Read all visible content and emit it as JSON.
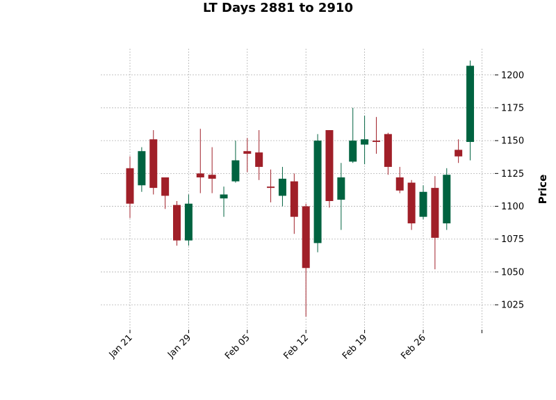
{
  "chart_data": {
    "type": "candlestick",
    "title": "LT Days 2881 to 2910",
    "ylabel": "Price",
    "xlabel": "",
    "ylim": [
      1006,
      1220
    ],
    "y_ticks": [
      1025,
      1050,
      1075,
      1100,
      1125,
      1150,
      1175,
      1200
    ],
    "x_tick_labels": [
      {
        "label": "Jan 21",
        "index": 0
      },
      {
        "label": "Jan 29",
        "index": 5
      },
      {
        "label": "Feb 05",
        "index": 10
      },
      {
        "label": "Feb 12",
        "index": 15
      },
      {
        "label": "Feb 19",
        "index": 20
      },
      {
        "label": "Feb 26",
        "index": 25
      },
      {
        "label": "",
        "index": 30
      }
    ],
    "grid": true,
    "colors": {
      "up": "#006340",
      "down": "#a01f28"
    },
    "candles": [
      {
        "open": 1129,
        "high": 1138,
        "low": 1091,
        "close": 1102
      },
      {
        "open": 1116,
        "high": 1145,
        "low": 1111,
        "close": 1142
      },
      {
        "open": 1151,
        "high": 1158,
        "low": 1109,
        "close": 1114
      },
      {
        "open": 1122,
        "high": 1122,
        "low": 1098,
        "close": 1108
      },
      {
        "open": 1101,
        "high": 1104,
        "low": 1070,
        "close": 1074
      },
      {
        "open": 1074,
        "high": 1109,
        "low": 1070,
        "close": 1102
      },
      {
        "open": 1125,
        "high": 1159,
        "low": 1110,
        "close": 1122
      },
      {
        "open": 1124,
        "high": 1145,
        "low": 1110,
        "close": 1121
      },
      {
        "open": 1106,
        "high": 1115,
        "low": 1092,
        "close": 1109
      },
      {
        "open": 1119,
        "high": 1150,
        "low": 1118,
        "close": 1135
      },
      {
        "open": 1142,
        "high": 1152,
        "low": 1126,
        "close": 1140
      },
      {
        "open": 1141,
        "high": 1158,
        "low": 1120,
        "close": 1130
      },
      {
        "open": 1115,
        "high": 1128,
        "low": 1103,
        "close": 1114
      },
      {
        "open": 1108,
        "high": 1130,
        "low": 1100,
        "close": 1121
      },
      {
        "open": 1119,
        "high": 1125,
        "low": 1079,
        "close": 1092
      },
      {
        "open": 1100,
        "high": 1102,
        "low": 1016,
        "close": 1053
      },
      {
        "open": 1072,
        "high": 1155,
        "low": 1065,
        "close": 1150
      },
      {
        "open": 1158,
        "high": 1158,
        "low": 1099,
        "close": 1104
      },
      {
        "open": 1105,
        "high": 1133,
        "low": 1082,
        "close": 1122
      },
      {
        "open": 1134,
        "high": 1175,
        "low": 1133,
        "close": 1150
      },
      {
        "open": 1147,
        "high": 1169,
        "low": 1132,
        "close": 1151
      },
      {
        "open": 1150,
        "high": 1168,
        "low": 1140,
        "close": 1149
      },
      {
        "open": 1155,
        "high": 1156,
        "low": 1124,
        "close": 1130
      },
      {
        "open": 1122,
        "high": 1130,
        "low": 1110,
        "close": 1112
      },
      {
        "open": 1118,
        "high": 1120,
        "low": 1082,
        "close": 1087
      },
      {
        "open": 1092,
        "high": 1116,
        "low": 1090,
        "close": 1111
      },
      {
        "open": 1114,
        "high": 1123,
        "low": 1052,
        "close": 1076
      },
      {
        "open": 1087,
        "high": 1129,
        "low": 1082,
        "close": 1124
      },
      {
        "open": 1143,
        "high": 1151,
        "low": 1133,
        "close": 1138
      },
      {
        "open": 1149,
        "high": 1211,
        "low": 1135,
        "close": 1207
      }
    ]
  }
}
